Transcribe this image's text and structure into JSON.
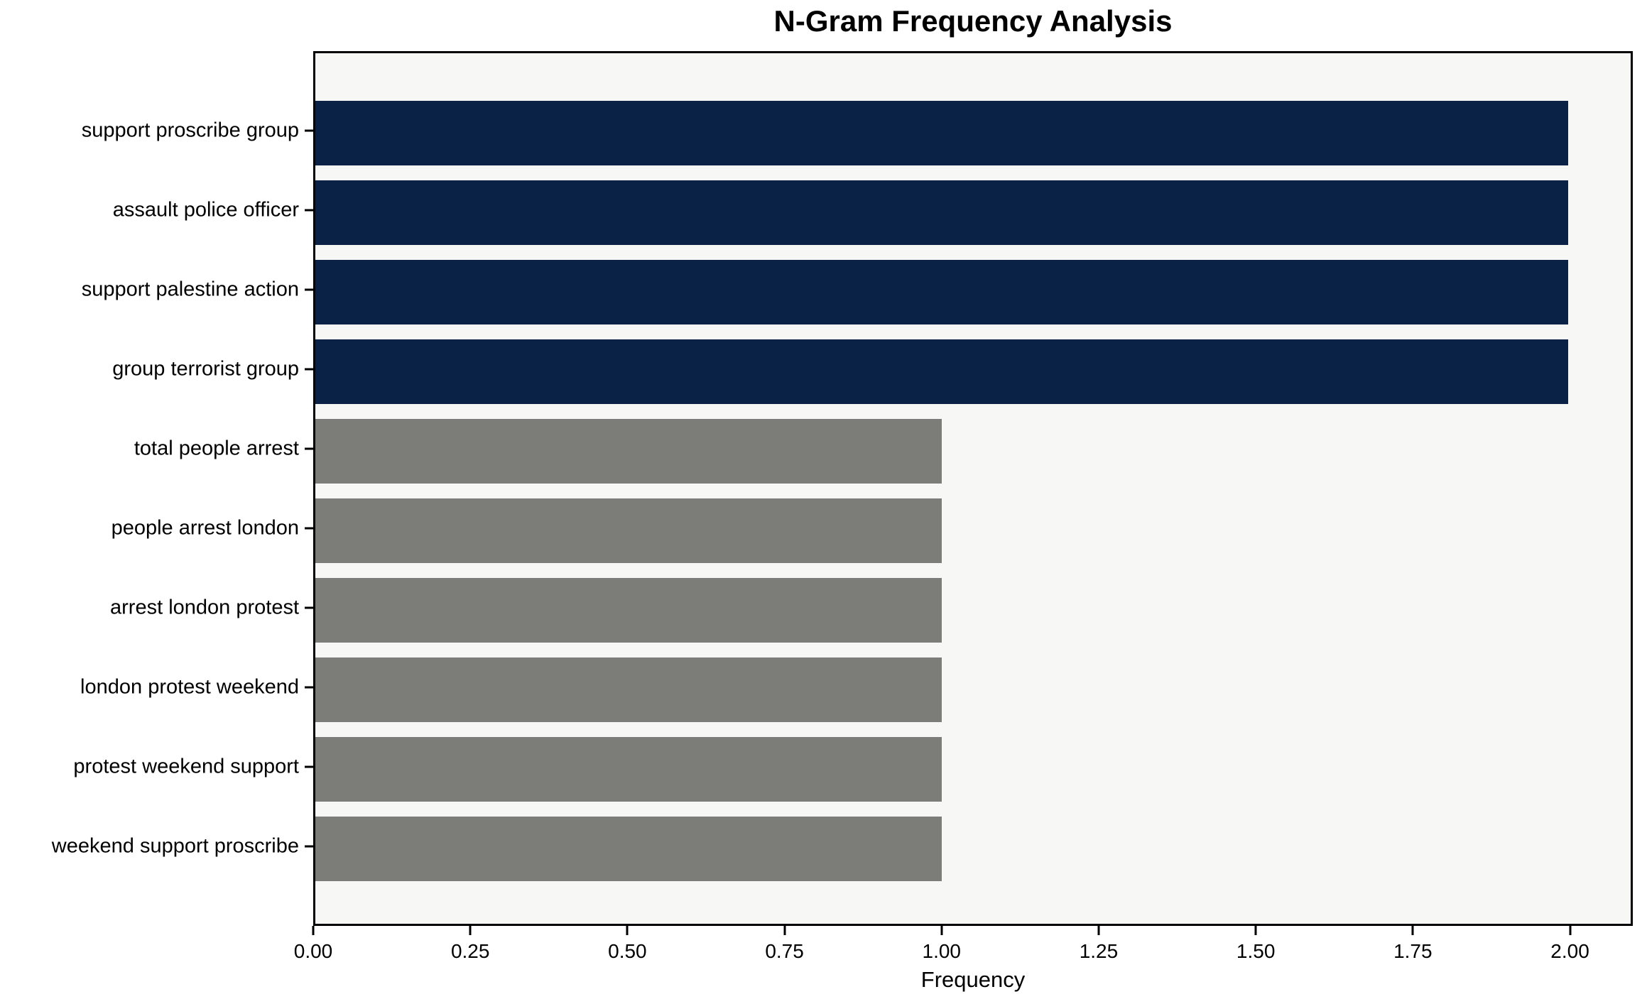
{
  "chart_data": {
    "type": "bar",
    "orientation": "horizontal",
    "title": "N-Gram Frequency Analysis",
    "xlabel": "Frequency",
    "ylabel": "",
    "categories": [
      "support proscribe group",
      "assault police officer",
      "support palestine action",
      "group terrorist group",
      "total people arrest",
      "people arrest london",
      "arrest london protest",
      "london protest weekend",
      "protest weekend support",
      "weekend support proscribe"
    ],
    "values": [
      2,
      2,
      2,
      2,
      1,
      1,
      1,
      1,
      1,
      1
    ],
    "bar_colors": [
      "#0a2245",
      "#0a2245",
      "#0a2245",
      "#0a2245",
      "#7c7c78",
      "#7c7c78",
      "#7c7c78",
      "#7c7c78",
      "#7c7c78",
      "#7c7c78"
    ],
    "xlim": [
      0,
      2.1
    ],
    "xtick_labels": [
      "0.00",
      "0.25",
      "0.50",
      "0.75",
      "1.00",
      "1.25",
      "1.50",
      "1.75",
      "2.00"
    ],
    "xtick_values": [
      0,
      0.25,
      0.5,
      0.75,
      1.0,
      1.25,
      1.5,
      1.75,
      2.0
    ],
    "grid": false,
    "legend": null,
    "colors": {
      "highlight_bar": "#0a2245",
      "default_bar": "#7c7c78",
      "plot_background": "#f7f7f6",
      "figure_background": "#ffffff",
      "spine": "#000000",
      "text": "#000000"
    }
  }
}
